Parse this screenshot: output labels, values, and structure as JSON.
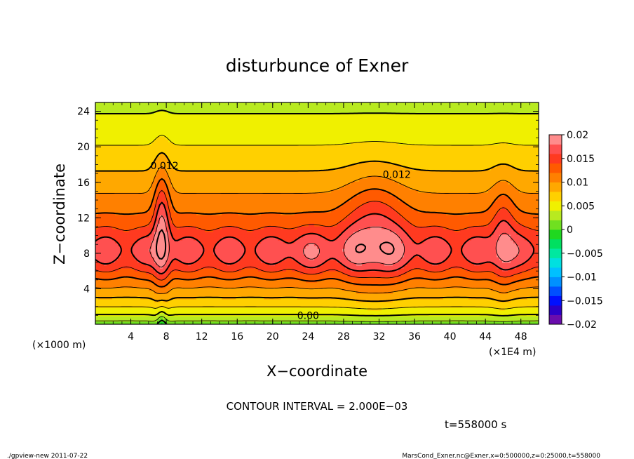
{
  "chart_data": {
    "type": "heatmap",
    "title": "disturbunce of Exner",
    "xlabel": "X−coordinate",
    "ylabel": "Z−coordinate",
    "x_unit_note": "(×1000 m)",
    "x_scale_note": "(×1E4 m)",
    "xlim": [
      0,
      50
    ],
    "ylim": [
      0,
      25
    ],
    "xticks": [
      4,
      8,
      12,
      16,
      20,
      24,
      28,
      32,
      36,
      40,
      44,
      48
    ],
    "yticks": [
      4,
      8,
      12,
      16,
      20,
      24
    ],
    "xtick_labels": [
      "4",
      "8",
      "12",
      "16",
      "20",
      "24",
      "28",
      "32",
      "36",
      "40",
      "44",
      "48"
    ],
    "ytick_labels": [
      "4",
      "8",
      "12",
      "16",
      "20",
      "24"
    ],
    "contour_labels": [
      {
        "text": "0.012",
        "x": 7.8,
        "y": 17.5
      },
      {
        "text": "0.012",
        "x": 34.0,
        "y": 16.5
      },
      {
        "text": "0.00",
        "x": 24.0,
        "y": 0.6
      }
    ],
    "colorbar": {
      "range": [
        -0.02,
        0.02
      ],
      "tick_labels": [
        "0.02",
        "0.015",
        "0.01",
        "0.005",
        "0",
        "−0.005",
        "−0.01",
        "−0.015",
        "−0.02"
      ],
      "tick_values": [
        0.02,
        0.015,
        0.01,
        0.005,
        0,
        -0.005,
        -0.01,
        -0.015,
        -0.02
      ],
      "levels": [
        -0.02,
        -0.018,
        -0.016,
        -0.014,
        -0.012,
        -0.01,
        -0.008,
        -0.006,
        -0.004,
        -0.002,
        0,
        0.002,
        0.004,
        0.006,
        0.008,
        0.01,
        0.012,
        0.014,
        0.016,
        0.018,
        0.02
      ],
      "colors": [
        "#6a0dad",
        "#2b00c8",
        "#0010ff",
        "#0050ff",
        "#0090ff",
        "#00c0ff",
        "#00e0e0",
        "#00e8a0",
        "#00e060",
        "#20d820",
        "#70e020",
        "#b8ea20",
        "#f0f000",
        "#ffd000",
        "#ffa800",
        "#ff8000",
        "#ff5a00",
        "#ff3a20",
        "#ff5050",
        "#ff8c8c"
      ]
    },
    "contour_interval_text": "CONTOUR INTERVAL = 2.000E−03",
    "time_text": "t=558000 s"
  },
  "footer": {
    "left": "./gpview-new   2011-07-22",
    "right": "MarsCond_Exner.nc@Exner,x=0:500000,z=0:25000,t=558000"
  }
}
